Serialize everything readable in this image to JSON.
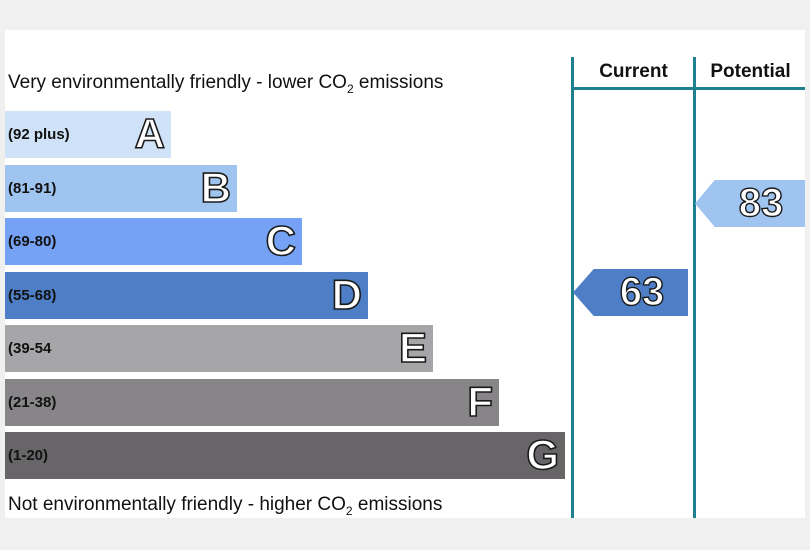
{
  "chart_data": {
    "type": "bar",
    "top_caption": {
      "pre": "Very environmentally friendly - lower CO",
      "sub": "2",
      "post": " emissions"
    },
    "bottom_caption": {
      "pre": "Not environmentally friendly - higher CO",
      "sub": "2",
      "post": " emissions"
    },
    "columns": {
      "current": "Current",
      "potential": "Potential"
    },
    "bands": [
      {
        "range": "(92 plus)",
        "letter": "A",
        "color": "#cfe2f7"
      },
      {
        "range": "(81-91)",
        "letter": "B",
        "color": "#9fc4f0"
      },
      {
        "range": "(69-80)",
        "letter": "C",
        "color": "#75a2f4"
      },
      {
        "range": "(55-68)",
        "letter": "D",
        "color": "#4e7fc6"
      },
      {
        "range": "(39-54",
        "letter": "E",
        "color": "#a6a5a8"
      },
      {
        "range": "(21-38)",
        "letter": "F",
        "color": "#878588"
      },
      {
        "range": "(1-20)",
        "letter": "G",
        "color": "#676568"
      }
    ],
    "current": {
      "value": "63",
      "band": "D",
      "color": "#4e7fc6"
    },
    "potential": {
      "value": "83",
      "band": "B",
      "color": "#9fc4f0"
    }
  }
}
